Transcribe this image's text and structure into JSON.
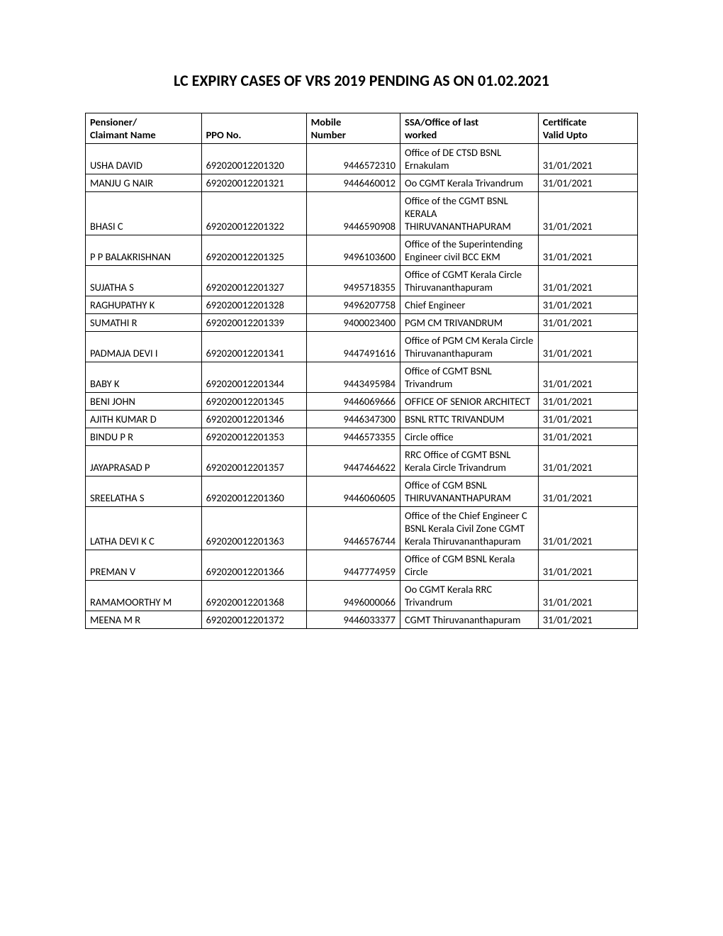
{
  "title": "LC EXPIRY CASES OF VRS 2019 PENDING AS ON 01.02.2021",
  "columns": {
    "name_line1": "Pensioner/",
    "name_line2": "Claimant Name",
    "ppo": "PPO No.",
    "mobile_line1": "Mobile",
    "mobile_line2": "Number",
    "office_line1": "SSA/Office of last",
    "office_line2": "worked",
    "valid_line1": "Certificate",
    "valid_line2": "Valid Upto"
  },
  "rows": [
    {
      "name": "USHA  DAVID",
      "ppo": "692020012201320",
      "mobile": "9446572310",
      "office": "Office of DE CTSD BSNL Ernakulam",
      "valid": "31/01/2021"
    },
    {
      "name": "MANJU G  NAIR",
      "ppo": "692020012201321",
      "mobile": "9446460012",
      "office": "Oo CGMT Kerala Trivandrum",
      "valid": "31/01/2021"
    },
    {
      "name": "BHASI  C",
      "ppo": "692020012201322",
      "mobile": "9446590908",
      "office": "Office of the CGMT BSNL KERALA THIRUVANANTHAPURAM",
      "valid": "31/01/2021"
    },
    {
      "name": "P P  BALAKRISHNAN",
      "ppo": "692020012201325",
      "mobile": "9496103600",
      "office": "Office of the Superintending Engineer civil BCC EKM",
      "valid": "31/01/2021"
    },
    {
      "name": "SUJATHA  S",
      "ppo": "692020012201327",
      "mobile": "9495718355",
      "office": "Office of CGMT Kerala Circle Thiruvananthapuram",
      "valid": "31/01/2021"
    },
    {
      "name": "RAGHUPATHY  K",
      "ppo": "692020012201328",
      "mobile": "9496207758",
      "office": "Chief Engineer",
      "valid": "31/01/2021"
    },
    {
      "name": "SUMATHI  R",
      "ppo": "692020012201339",
      "mobile": "9400023400",
      "office": "PGM CM TRIVANDRUM",
      "valid": "31/01/2021"
    },
    {
      "name": "PADMAJA DEVI  I",
      "ppo": "692020012201341",
      "mobile": "9447491616",
      "office": "Office of  PGM CM Kerala Circle Thiruvananthapuram",
      "valid": "31/01/2021"
    },
    {
      "name": "BABY  K",
      "ppo": "692020012201344",
      "mobile": "9443495984",
      "office": "Office of CGMT BSNL Trivandrum",
      "valid": "31/01/2021"
    },
    {
      "name": "BENI  JOHN",
      "ppo": "692020012201345",
      "mobile": "9446069666",
      "office": "OFFICE OF SENIOR ARCHITECT",
      "valid": "31/01/2021"
    },
    {
      "name": "AJITH KUMAR  D",
      "ppo": "692020012201346",
      "mobile": "9446347300",
      "office": "BSNL RTTC TRIVANDUM",
      "valid": "31/01/2021"
    },
    {
      "name": "BINDU P  R",
      "ppo": "692020012201353",
      "mobile": "9446573355",
      "office": "Circle office",
      "valid": "31/01/2021"
    },
    {
      "name": "JAYAPRASAD  P",
      "ppo": "692020012201357",
      "mobile": "9447464622",
      "office": "RRC Office of CGMT BSNL Kerala Circle Trivandrum",
      "valid": "31/01/2021"
    },
    {
      "name": "SREELATHA  S",
      "ppo": "692020012201360",
      "mobile": "9446060605",
      "office": "Office of CGM BSNL THIRUVANANTHAPURAM",
      "valid": "31/01/2021"
    },
    {
      "name": "LATHA DEVI K  C",
      "ppo": "692020012201363",
      "mobile": "9446576744",
      "office": "Office of the Chief Engineer C    BSNL Kerala Civil Zone CGMT Kerala Thiruvananthapuram",
      "valid": "31/01/2021"
    },
    {
      "name": "PREMAN  V",
      "ppo": "692020012201366",
      "mobile": "9447774959",
      "office": "Office of CGM BSNL Kerala Circle",
      "valid": "31/01/2021"
    },
    {
      "name": "RAMAMOORTHY  M",
      "ppo": "692020012201368",
      "mobile": "9496000066",
      "office": "Oo CGMT Kerala RRC Trivandrum",
      "valid": "31/01/2021"
    },
    {
      "name": "MEENA M  R",
      "ppo": "692020012201372",
      "mobile": "9446033377",
      "office": "CGMT Thiruvananthapuram",
      "valid": "31/01/2021"
    }
  ],
  "styling": {
    "title_fontsize": 22,
    "body_fontsize": 14.5,
    "border_color": "#000000",
    "text_color": "#000000",
    "background_color": "#ffffff",
    "font_family": "Calibri, Arial, sans-serif"
  }
}
